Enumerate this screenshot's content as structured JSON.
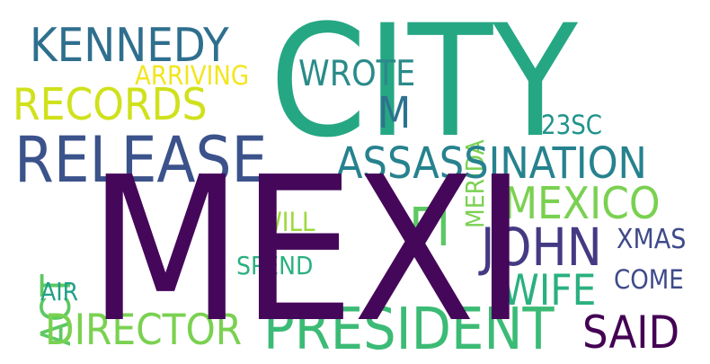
{
  "words": [
    {
      "text": "CITY",
      "color": "#26a784"
    },
    {
      "text": "MEXI",
      "color": "#45075a"
    },
    {
      "text": "RELEASE",
      "color": "#3b528b"
    },
    {
      "text": "KENNEDY",
      "color": "#2f6f8e"
    },
    {
      "text": "RECORDS",
      "color": "#d0e11c"
    },
    {
      "text": "ARRIVING",
      "color": "#f3e51e"
    },
    {
      "text": "WROTE",
      "color": "#2a8b8a"
    },
    {
      "text": "M",
      "color": "#2c728e"
    },
    {
      "text": "MERIDA",
      "color": "#7ad151"
    },
    {
      "text": "23SC",
      "color": "#1f948c"
    },
    {
      "text": "ASSASSINATION",
      "color": "#26828e"
    },
    {
      "text": "FI",
      "color": "#5cc863"
    },
    {
      "text": "MEXICO",
      "color": "#7ad151"
    },
    {
      "text": "JOHN",
      "color": "#443a83"
    },
    {
      "text": "XMAS",
      "color": "#3f4a8a"
    },
    {
      "text": "WILL",
      "color": "#9bd93c"
    },
    {
      "text": "ACT",
      "color": "#5ec962"
    },
    {
      "text": "SPEND",
      "color": "#2ab07f"
    },
    {
      "text": "WIFE",
      "color": "#2ab07f"
    },
    {
      "text": "COME",
      "color": "#3e4a89"
    },
    {
      "text": "AIR",
      "color": "#1fa088"
    },
    {
      "text": "DIRECTOR",
      "color": "#7ad151"
    },
    {
      "text": "PRESIDENT",
      "color": "#3bbb75"
    },
    {
      "text": "SAID",
      "color": "#440154"
    }
  ]
}
